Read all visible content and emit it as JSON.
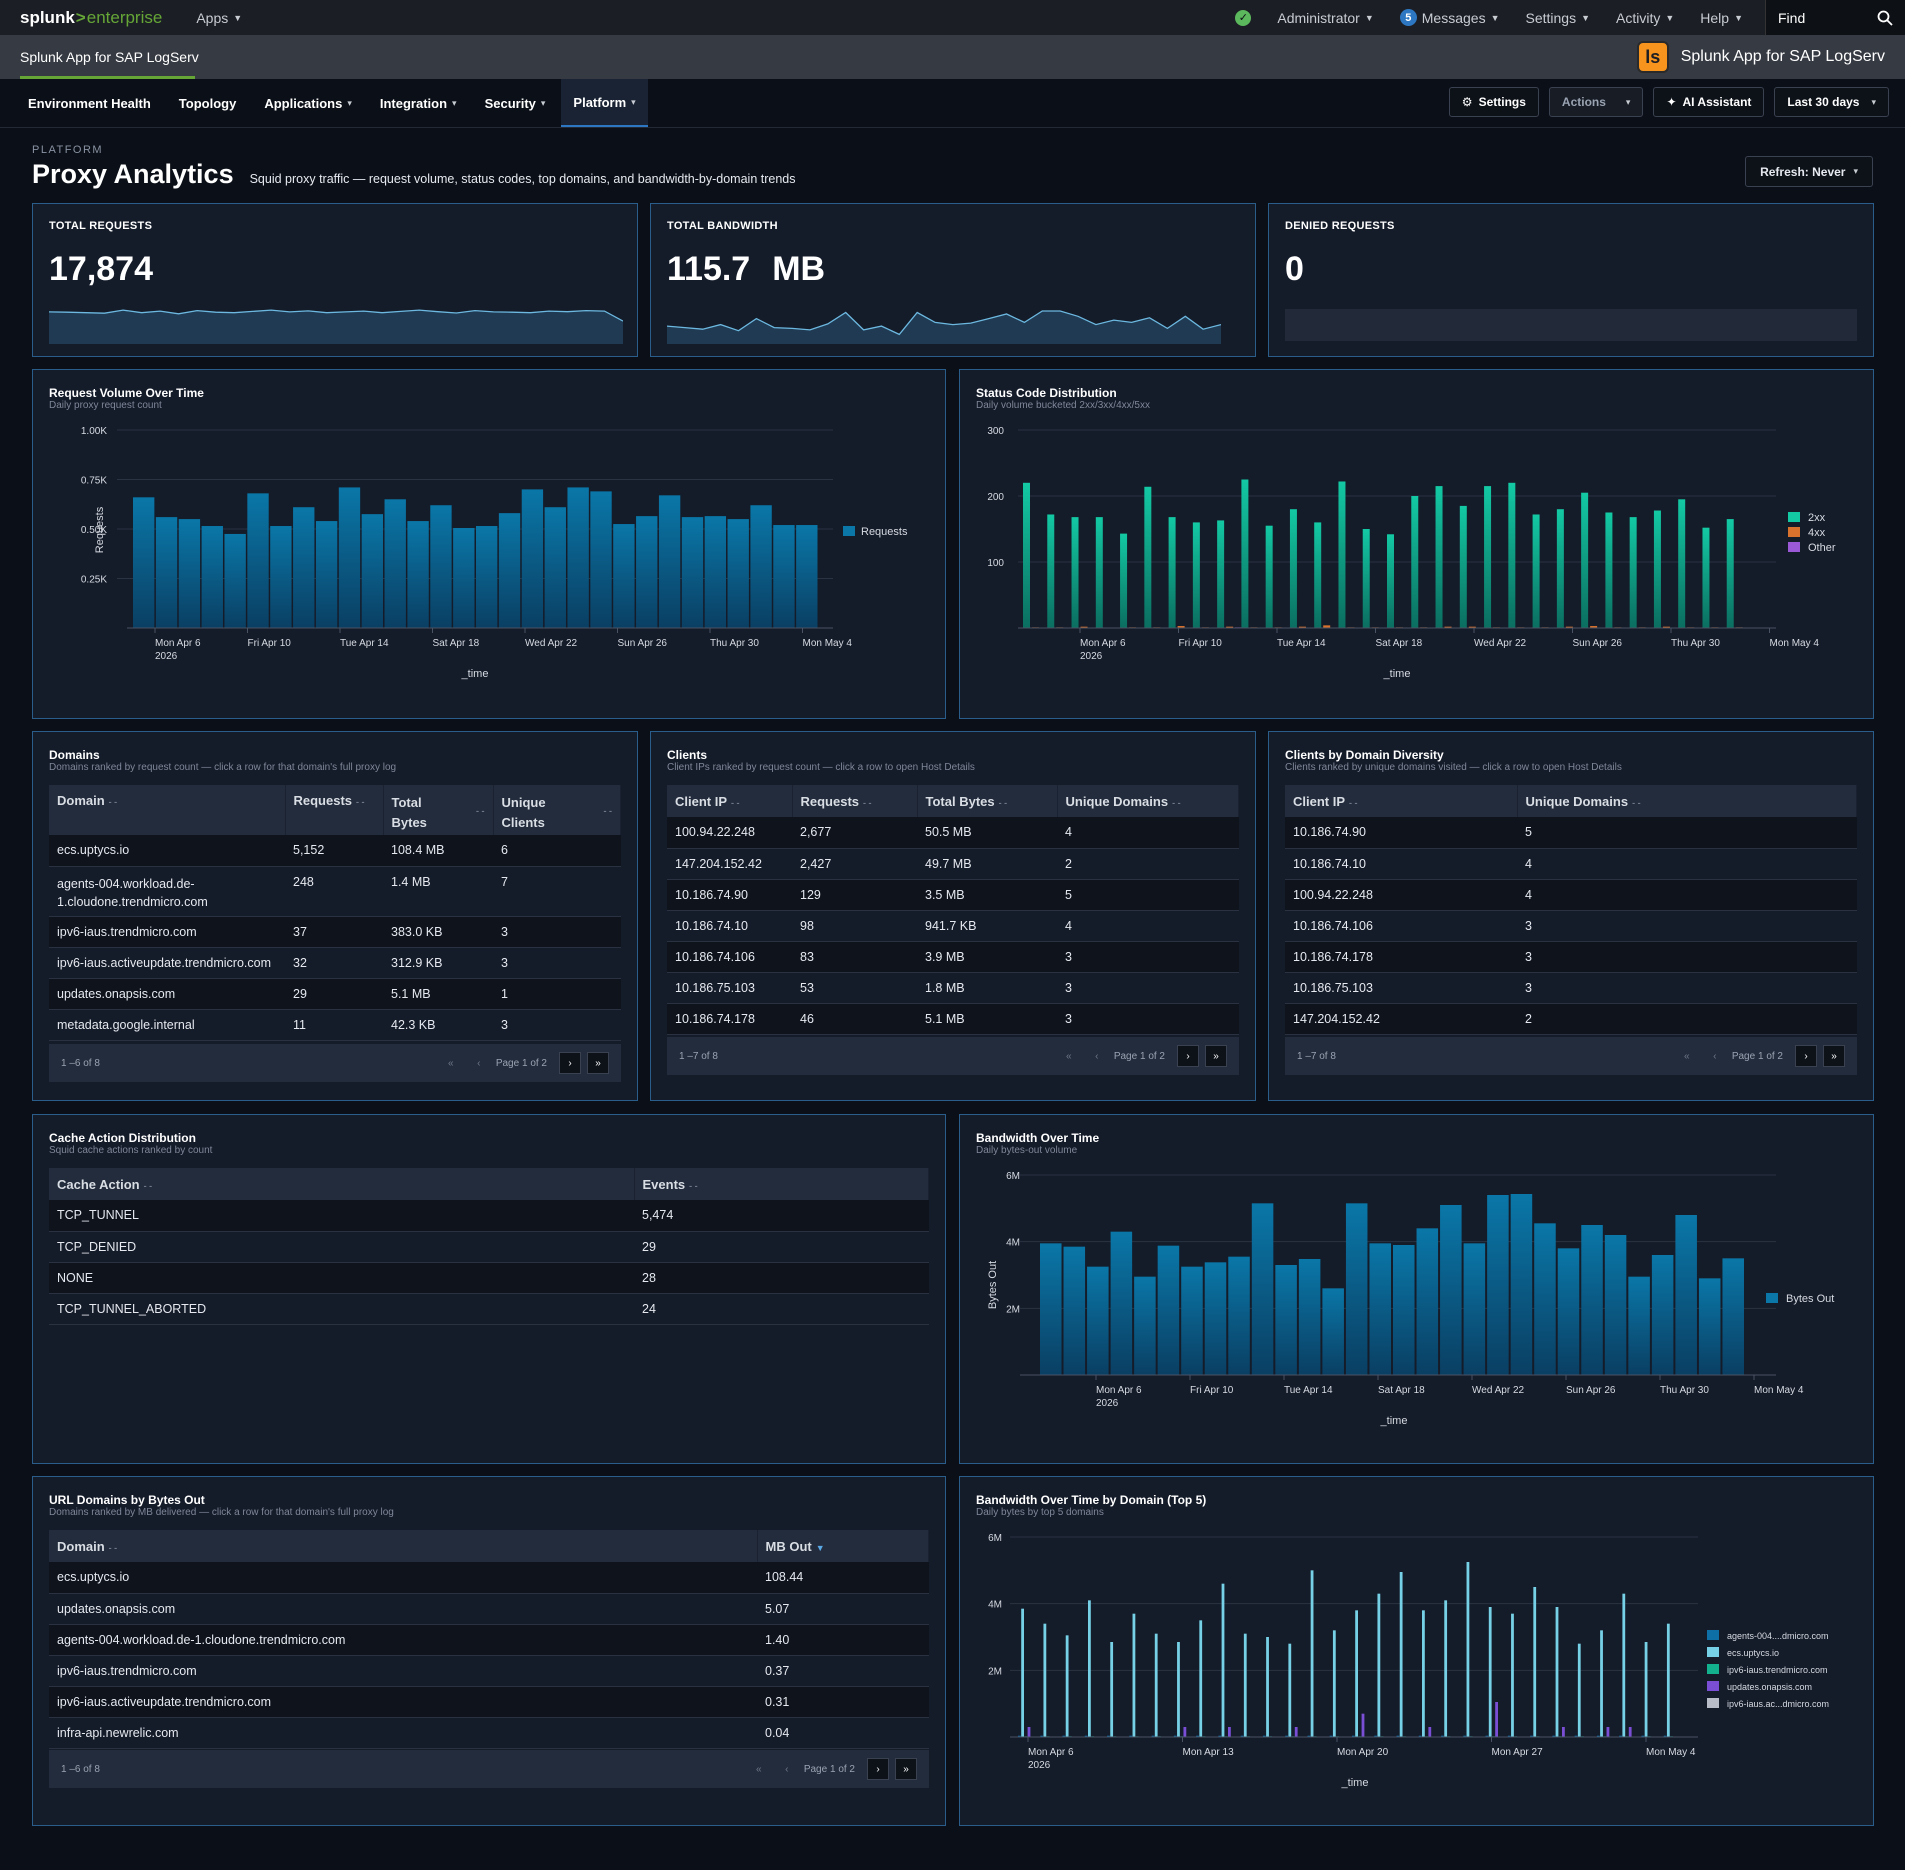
{
  "topbar": {
    "brand_a": "splunk",
    "brand_gt": ">",
    "brand_b": "enterprise",
    "apps": "Apps",
    "admin": "Administrator",
    "messages_count": "5",
    "messages": "Messages",
    "settings": "Settings",
    "activity": "Activity",
    "help": "Help",
    "find": "Find"
  },
  "appbar": {
    "title": "Splunk App for SAP LogServ",
    "logo_text": "ls",
    "right_title": "Splunk App for SAP LogServ"
  },
  "nav": {
    "tabs": [
      "Environment Health",
      "Topology",
      "Applications",
      "Integration",
      "Security",
      "Platform"
    ],
    "settings": "Settings",
    "actions": "Actions",
    "ai": "AI Assistant",
    "range": "Last 30 days"
  },
  "page": {
    "crumb": "PLATFORM",
    "title": "Proxy Analytics",
    "subtitle": "Squid proxy traffic — request volume, status codes, top domains, and bandwidth-by-domain trends",
    "refresh": "Refresh: Never"
  },
  "kpis": [
    {
      "label": "TOTAL REQUESTS",
      "value": "17,874",
      "unit": "",
      "spark": [
        575,
        570,
        560,
        550,
        610,
        560,
        590,
        540,
        600,
        570,
        560,
        585,
        610,
        575,
        595,
        560,
        575,
        590,
        560,
        585,
        610,
        580,
        555,
        600,
        575,
        570,
        560,
        590,
        580,
        600,
        590,
        400
      ]
    },
    {
      "label": "TOTAL BANDWIDTH",
      "value": "115.7",
      "unit": "MB",
      "spark": [
        3.6,
        3.4,
        3.2,
        3.8,
        3.0,
        4.6,
        3.4,
        3.3,
        3.1,
        3.9,
        5.4,
        3.1,
        3.6,
        2.5,
        5.4,
        4.1,
        3.8,
        4.0,
        4.6,
        5.2,
        4.1,
        5.6,
        5.6,
        4.9,
        3.8,
        4.4,
        4.1,
        4.7,
        3.3,
        4.9,
        3.2,
        3.8
      ]
    },
    {
      "label": "DENIED REQUESTS",
      "value": "0",
      "unit": ""
    }
  ],
  "request_volume": {
    "title": "Request Volume Over Time",
    "subtitle": "Daily proxy request count",
    "ylabel": "Requests",
    "xlabel": "_time",
    "legend": "Requests",
    "yticks": [
      "1.00K",
      "0.75K",
      "0.50K",
      "0.25K"
    ],
    "xticks": [
      "Mon Apr 6",
      "Fri Apr 10",
      "Tue Apr 14",
      "Sat Apr 18",
      "Wed Apr 22",
      "Sun Apr 26",
      "Thu Apr 30",
      "Mon May 4"
    ],
    "year": "2026"
  },
  "status_codes": {
    "title": "Status Code Distribution",
    "subtitle": "Daily volume bucketed 2xx/3xx/4xx/5xx",
    "xlabel": "_time",
    "yticks": [
      "300",
      "200",
      "100"
    ],
    "legend": [
      "2xx",
      "4xx",
      "Other"
    ],
    "xticks": [
      "Mon Apr 6",
      "Fri Apr 10",
      "Tue Apr 14",
      "Sat Apr 18",
      "Wed Apr 22",
      "Sun Apr 26",
      "Thu Apr 30",
      "Mon May 4"
    ],
    "year": "2026"
  },
  "domains": {
    "title": "Domains",
    "subtitle": "Domains ranked by request count — click a row for that domain's full proxy log",
    "headers": [
      "Domain",
      "Requests",
      "Total Bytes",
      "Unique Clients"
    ],
    "rows": [
      [
        "ecs.uptycs.io",
        "5,152",
        "108.4 MB",
        "6"
      ],
      [
        "agents-004.workload.de-1.cloudone.trendmicro.com",
        "248",
        "1.4 MB",
        "7"
      ],
      [
        "ipv6-iaus.trendmicro.com",
        "37",
        "383.0 KB",
        "3"
      ],
      [
        "ipv6-iaus.activeupdate.trendmicro.com",
        "32",
        "312.9 KB",
        "3"
      ],
      [
        "updates.onapsis.com",
        "29",
        "5.1 MB",
        "1"
      ],
      [
        "metadata.google.internal",
        "11",
        "42.3 KB",
        "3"
      ]
    ],
    "range": "1 –6 of 8",
    "page_label": "Page 1",
    "page_of": "of 2"
  },
  "clients": {
    "title": "Clients",
    "subtitle": "Client IPs ranked by request count — click a row to open Host Details",
    "headers": [
      "Client IP",
      "Requests",
      "Total Bytes",
      "Unique Domains"
    ],
    "rows": [
      [
        "100.94.22.248",
        "2,677",
        "50.5 MB",
        "4"
      ],
      [
        "147.204.152.42",
        "2,427",
        "49.7 MB",
        "2"
      ],
      [
        "10.186.74.90",
        "129",
        "3.5 MB",
        "5"
      ],
      [
        "10.186.74.10",
        "98",
        "941.7 KB",
        "4"
      ],
      [
        "10.186.74.106",
        "83",
        "3.9 MB",
        "3"
      ],
      [
        "10.186.75.103",
        "53",
        "1.8 MB",
        "3"
      ],
      [
        "10.186.74.178",
        "46",
        "5.1 MB",
        "3"
      ]
    ],
    "range": "1 –7 of 8",
    "page_label": "Page 1",
    "page_of": "of 2"
  },
  "clients_diversity": {
    "title": "Clients by Domain Diversity",
    "subtitle": "Clients ranked by unique domains visited — click a row to open Host Details",
    "headers": [
      "Client IP",
      "Unique Domains"
    ],
    "rows": [
      [
        "10.186.74.90",
        "5"
      ],
      [
        "10.186.74.10",
        "4"
      ],
      [
        "100.94.22.248",
        "4"
      ],
      [
        "10.186.74.106",
        "3"
      ],
      [
        "10.186.74.178",
        "3"
      ],
      [
        "10.186.75.103",
        "3"
      ],
      [
        "147.204.152.42",
        "2"
      ]
    ],
    "range": "1 –7 of 8",
    "page_label": "Page 1",
    "page_of": "of 2"
  },
  "cache": {
    "title": "Cache Action Distribution",
    "subtitle": "Squid cache actions ranked by count",
    "headers": [
      "Cache Action",
      "Events"
    ],
    "rows": [
      [
        "TCP_TUNNEL",
        "5,474"
      ],
      [
        "TCP_DENIED",
        "29"
      ],
      [
        "NONE",
        "28"
      ],
      [
        "TCP_TUNNEL_ABORTED",
        "24"
      ]
    ]
  },
  "bandwidth": {
    "title": "Bandwidth Over Time",
    "subtitle": "Daily bytes-out volume",
    "ylabel": "Bytes Out",
    "xlabel": "_time",
    "legend": "Bytes Out",
    "yticks": [
      "6M",
      "4M",
      "2M"
    ],
    "xticks": [
      "Mon Apr 6",
      "Fri Apr 10",
      "Tue Apr 14",
      "Sat Apr 18",
      "Wed Apr 22",
      "Sun Apr 26",
      "Thu Apr 30",
      "Mon May 4"
    ],
    "year": "2026"
  },
  "url_domains": {
    "title": "URL Domains by Bytes Out",
    "subtitle": "Domains ranked by MB delivered — click a row for that domain's full proxy log",
    "headers": [
      "Domain",
      "MB Out"
    ],
    "rows": [
      [
        "ecs.uptycs.io",
        "108.44"
      ],
      [
        "updates.onapsis.com",
        "5.07"
      ],
      [
        "agents-004.workload.de-1.cloudone.trendmicro.com",
        "1.40"
      ],
      [
        "ipv6-iaus.trendmicro.com",
        "0.37"
      ],
      [
        "ipv6-iaus.activeupdate.trendmicro.com",
        "0.31"
      ],
      [
        "infra-api.newrelic.com",
        "0.04"
      ]
    ],
    "range": "1 –6 of 8",
    "page_label": "Page 1",
    "page_of": "of 2"
  },
  "bw_domain": {
    "title": "Bandwidth Over Time by Domain (Top 5)",
    "subtitle": "Daily bytes by top 5 domains",
    "xlabel": "_time",
    "yticks": [
      "6M",
      "4M",
      "2M"
    ],
    "xticks": [
      "Mon Apr 6",
      "Mon Apr 13",
      "Mon Apr 20",
      "Mon Apr 27",
      "Mon May 4"
    ],
    "year": "2026",
    "legend": [
      "agents-004....dmicro.com",
      "ecs.uptycs.io",
      "ipv6-iaus.trendmicro.com",
      "updates.onapsis.com",
      "ipv6-iaus.ac...dmicro.com"
    ]
  },
  "chart_data": [
    {
      "type": "bar",
      "title": "Request Volume Over Time",
      "xlabel": "_time",
      "ylabel": "Requests",
      "ylim": [
        0,
        1000
      ],
      "series": [
        {
          "name": "Requests",
          "values": [
            660,
            560,
            550,
            515,
            475,
            680,
            515,
            610,
            540,
            710,
            575,
            650,
            540,
            620,
            505,
            515,
            580,
            700,
            610,
            710,
            690,
            525,
            565,
            670,
            560,
            565,
            550,
            620,
            520,
            520
          ]
        }
      ]
    },
    {
      "type": "bar",
      "title": "Status Code Distribution",
      "xlabel": "_time",
      "ylim": [
        0,
        300
      ],
      "series": [
        {
          "name": "2xx",
          "values": [
            220,
            172,
            168,
            168,
            143,
            214,
            168,
            160,
            163,
            225,
            155,
            180,
            160,
            222,
            150,
            142,
            200,
            215,
            185,
            215,
            220,
            172,
            180,
            205,
            175,
            168,
            178,
            195,
            152,
            165
          ]
        },
        {
          "name": "4xx",
          "values": [
            1,
            1,
            2,
            0,
            1,
            1,
            3,
            1,
            2,
            1,
            1,
            2,
            4,
            1,
            1,
            1,
            1,
            2,
            2,
            1,
            1,
            1,
            2,
            3,
            1,
            1,
            2,
            1,
            1,
            1
          ]
        },
        {
          "name": "Other",
          "values": [
            0,
            0,
            0,
            0,
            0,
            0,
            0,
            0,
            1,
            0,
            0,
            0,
            0,
            0,
            0,
            0,
            0,
            0,
            0,
            0,
            0,
            0,
            0,
            0,
            0,
            0,
            0,
            0,
            0,
            0
          ]
        }
      ]
    },
    {
      "type": "bar",
      "title": "Bandwidth Over Time",
      "xlabel": "_time",
      "ylabel": "Bytes Out",
      "ylim": [
        0,
        6000000
      ],
      "series": [
        {
          "name": "Bytes Out",
          "values": [
            3950000,
            3850000,
            3250000,
            4300000,
            2950000,
            3880000,
            3250000,
            3380000,
            3550000,
            5150000,
            3300000,
            3480000,
            2600000,
            5150000,
            3950000,
            3900000,
            4400000,
            5100000,
            3950000,
            5400000,
            5430000,
            4550000,
            3800000,
            4500000,
            4200000,
            2950000,
            3600000,
            4800000,
            2900000,
            3500000
          ]
        }
      ]
    },
    {
      "type": "bar",
      "title": "Bandwidth Over Time by Domain (Top 5)",
      "xlabel": "_time",
      "ylim": [
        0,
        6000000
      ],
      "series": [
        {
          "name": "agents-004....dmicro.com",
          "values": [
            40000,
            40000,
            40000,
            40000,
            40000,
            40000,
            40000,
            40000,
            40000,
            40000,
            40000,
            40000,
            40000,
            40000,
            40000,
            40000,
            40000,
            40000,
            40000,
            40000,
            40000,
            40000,
            40000,
            40000,
            40000,
            40000,
            40000,
            40000,
            40000,
            40000
          ]
        },
        {
          "name": "ecs.uptycs.io",
          "values": [
            3850000,
            3400000,
            3050000,
            4100000,
            2850000,
            3700000,
            3100000,
            2850000,
            3500000,
            4600000,
            3100000,
            3000000,
            2800000,
            5000000,
            3200000,
            3800000,
            4300000,
            4950000,
            3800000,
            4100000,
            5250000,
            3900000,
            3700000,
            4500000,
            3900000,
            2800000,
            3200000,
            4300000,
            2850000,
            3400000
          ]
        },
        {
          "name": "ipv6-iaus.trendmicro.com",
          "values": [
            20000,
            20000,
            20000,
            20000,
            20000,
            20000,
            20000,
            20000,
            20000,
            20000,
            20000,
            20000,
            20000,
            20000,
            20000,
            20000,
            20000,
            20000,
            20000,
            20000,
            20000,
            20000,
            20000,
            20000,
            20000,
            20000,
            20000,
            20000,
            20000,
            20000
          ]
        },
        {
          "name": "updates.onapsis.com",
          "values": [
            300000,
            0,
            0,
            0,
            0,
            0,
            0,
            300000,
            0,
            300000,
            0,
            0,
            300000,
            0,
            0,
            700000,
            0,
            0,
            300000,
            0,
            0,
            1050000,
            0,
            0,
            300000,
            0,
            300000,
            300000,
            0,
            0
          ]
        },
        {
          "name": "ipv6-iaus.ac...dmicro.com",
          "values": [
            15000,
            15000,
            15000,
            15000,
            15000,
            15000,
            15000,
            15000,
            15000,
            15000,
            15000,
            15000,
            15000,
            15000,
            15000,
            15000,
            15000,
            15000,
            15000,
            15000,
            15000,
            15000,
            15000,
            15000,
            15000,
            15000,
            15000,
            15000,
            15000,
            15000
          ]
        }
      ]
    }
  ]
}
